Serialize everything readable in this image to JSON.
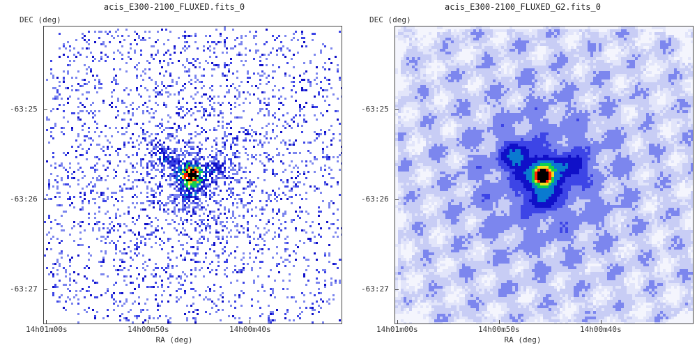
{
  "panels": [
    {
      "title": "acis_E300-2100_FLUXED.fits_0",
      "ylabel": "DEC (deg)",
      "xlabel": "RA (deg)",
      "yticks": [
        "-63:25",
        "-63:26",
        "-63:27"
      ],
      "xticks": [
        "14h01m00s",
        "14h00m50s",
        "14h00m40s"
      ],
      "style": "binned-counts"
    },
    {
      "title": "acis_E300-2100_FLUXED_G2.fits_0",
      "ylabel": "DEC (deg)",
      "xlabel": "RA (deg)",
      "yticks": [
        "-63:25",
        "-63:26",
        "-63:27"
      ],
      "xticks": [
        "14h01m00s",
        "14h00m50s",
        "14h00m40s"
      ],
      "style": "gaussian-smoothed"
    }
  ],
  "colormap": [
    "#ffffff",
    "#c8cdf5",
    "#7c86ee",
    "#3d45e6",
    "#1010c8",
    "#0a7ad0",
    "#10d050",
    "#f0e020",
    "#ff2000",
    "#000000"
  ]
}
